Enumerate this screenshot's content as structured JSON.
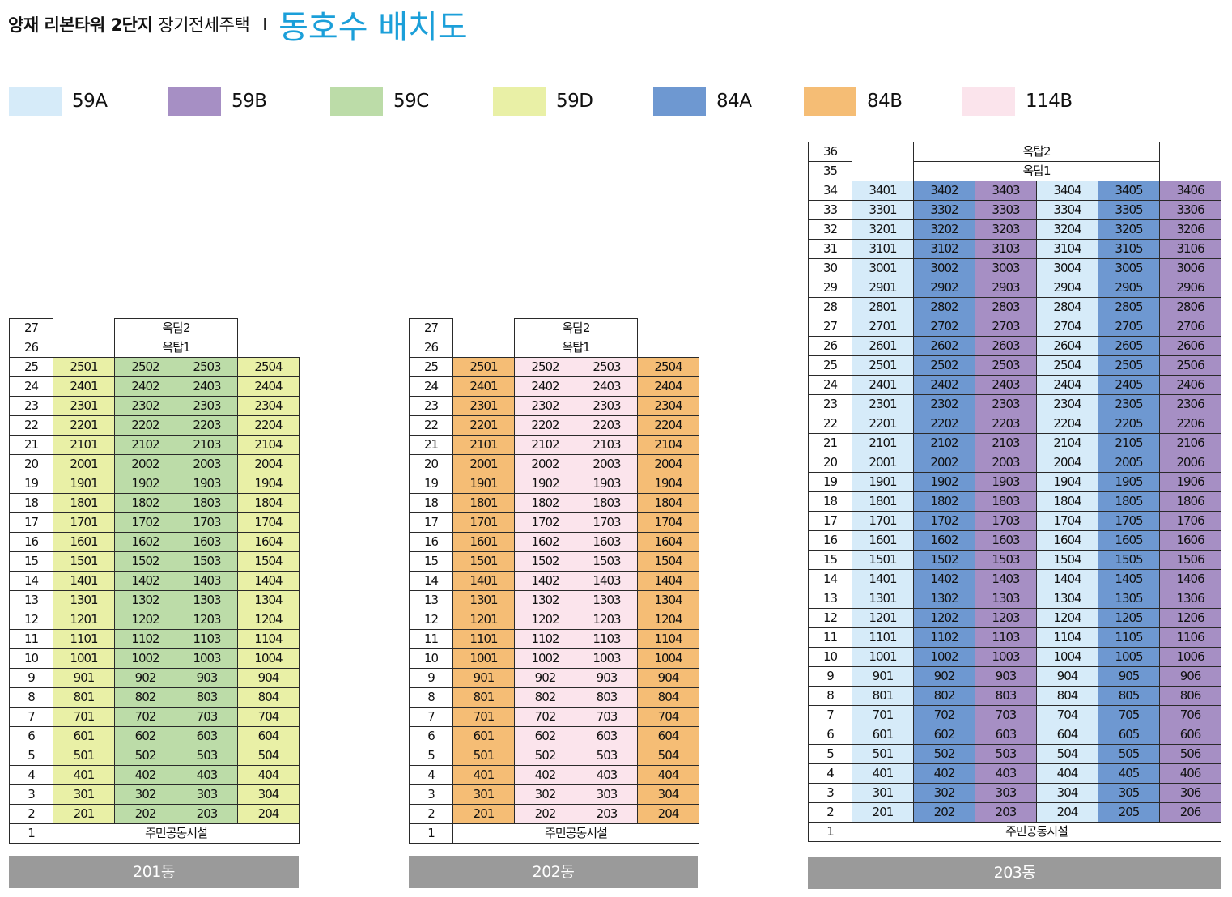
{
  "header": {
    "complex": "양재 리본타워 2단지",
    "subtitle": "장기전세주택",
    "separator": "I",
    "title": "동호수 배치도"
  },
  "legend": [
    {
      "label": "59A",
      "color": "#d6ebf9"
    },
    {
      "label": "59B",
      "color": "#a68fc4"
    },
    {
      "label": "59C",
      "color": "#bcdca8"
    },
    {
      "label": "59D",
      "color": "#e9f0a6"
    },
    {
      "label": "84A",
      "color": "#6e98d1"
    },
    {
      "label": "84B",
      "color": "#f5bd75"
    },
    {
      "label": "114B",
      "color": "#fbe4ec"
    }
  ],
  "buildings": [
    {
      "name": "201동",
      "top_floor": 25,
      "units": 4,
      "unit_types": [
        "59D",
        "59C",
        "59C",
        "59D"
      ],
      "roof": [
        {
          "floor": "27",
          "label": "옥탑2"
        },
        {
          "floor": "26",
          "label": "옥탑1"
        }
      ],
      "facility": {
        "floor": "1",
        "label": "주민공동시설"
      }
    },
    {
      "name": "202동",
      "top_floor": 25,
      "units": 4,
      "unit_types": [
        "84B",
        "114B",
        "114B",
        "84B"
      ],
      "roof": [
        {
          "floor": "27",
          "label": "옥탑2"
        },
        {
          "floor": "26",
          "label": "옥탑1"
        }
      ],
      "facility": {
        "floor": "1",
        "label": "주민공동시설"
      }
    },
    {
      "name": "203동",
      "top_floor": 34,
      "units": 6,
      "unit_types": [
        "59A",
        "84A",
        "59B",
        "59A",
        "84A",
        "59B"
      ],
      "roof": [
        {
          "floor": "36",
          "label": "옥탑2"
        },
        {
          "floor": "35",
          "label": "옥탑1"
        }
      ],
      "facility": {
        "floor": "1",
        "label": "주민공동시설"
      }
    }
  ]
}
